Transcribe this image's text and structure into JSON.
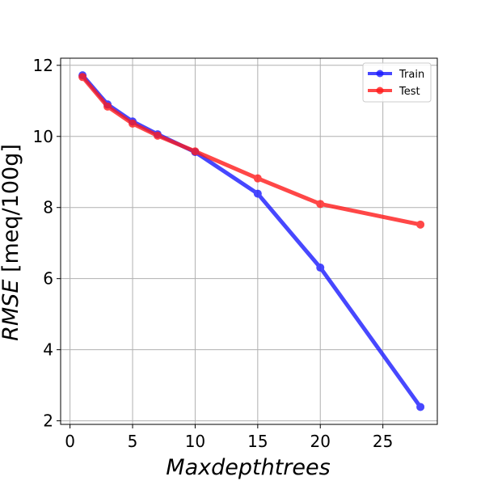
{
  "chart_data": {
    "type": "line",
    "title": "",
    "xlabel": "Maxdepthtrees",
    "ylabel_italic": "RMSE",
    "ylabel_unit": " [meq/100g]",
    "xlim": [
      -0.75,
      29.35
    ],
    "ylim": [
      1.9,
      12.2
    ],
    "xticks": [
      0,
      5,
      10,
      15,
      20,
      25
    ],
    "yticks": [
      2,
      4,
      6,
      8,
      10,
      12
    ],
    "grid": true,
    "legend_position": "top-right",
    "x": [
      1,
      3,
      5,
      7,
      10,
      15,
      20,
      28
    ],
    "series": [
      {
        "name": "Train",
        "color": "#1a1aff",
        "values": [
          11.72,
          10.9,
          10.42,
          10.06,
          9.56,
          8.39,
          6.31,
          2.39
        ]
      },
      {
        "name": "Test",
        "color": "#ff1a1a",
        "values": [
          11.67,
          10.84,
          10.36,
          10.02,
          9.58,
          8.82,
          8.1,
          7.52
        ]
      }
    ]
  }
}
